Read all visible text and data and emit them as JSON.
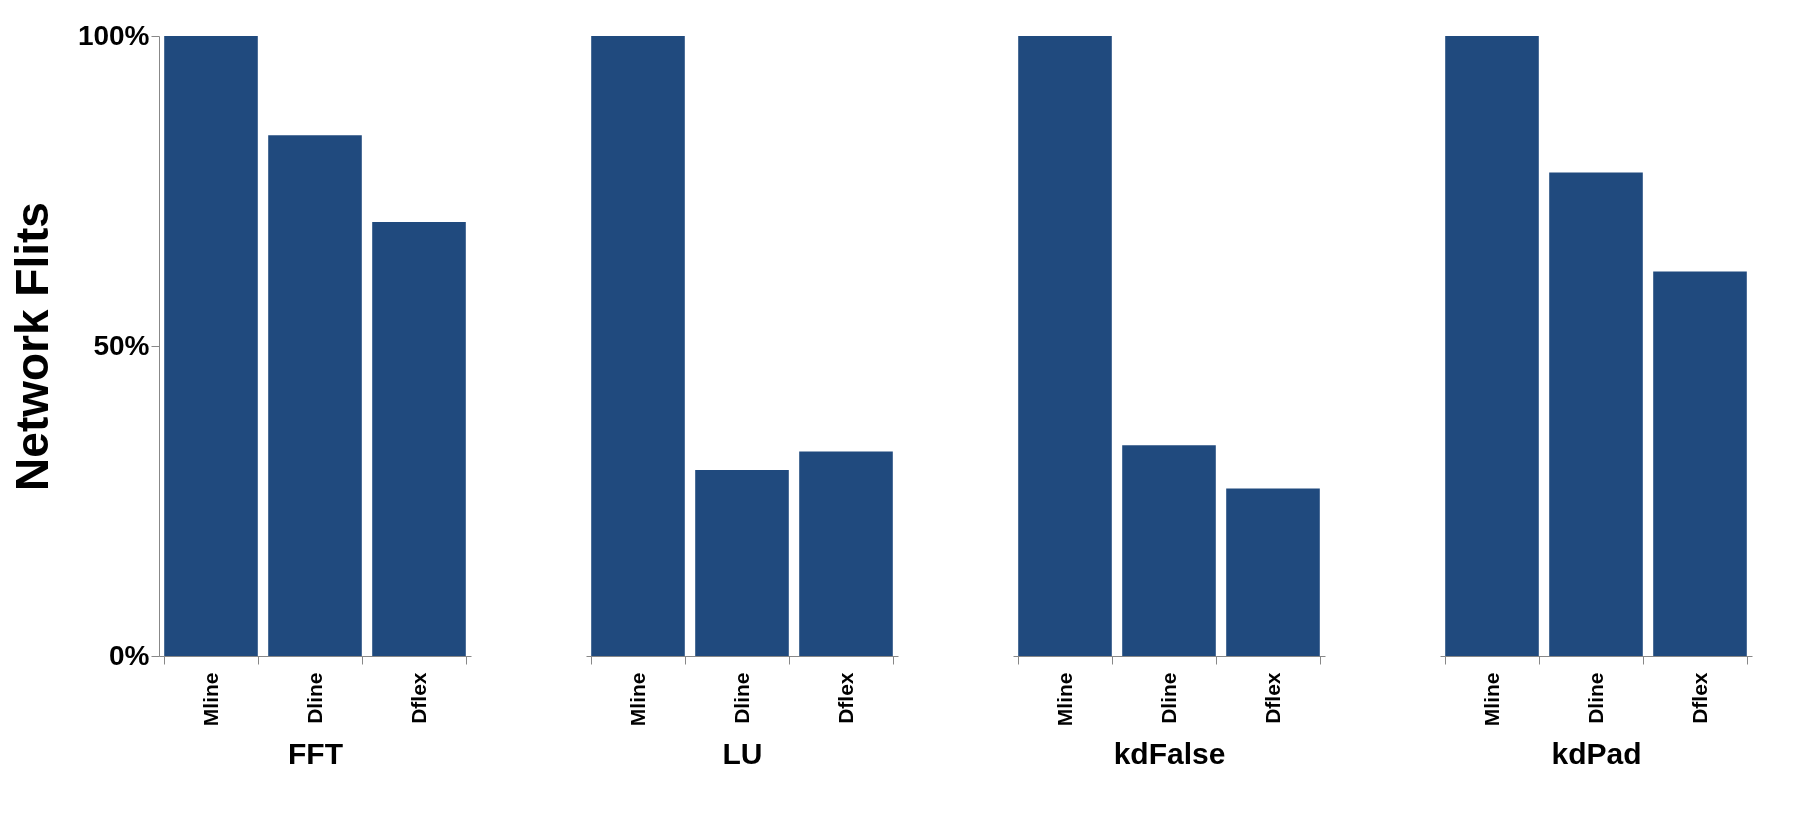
{
  "chart_data": [
    {
      "type": "bar",
      "xlabel": "FFT",
      "ylabel": "Network Flits",
      "categories": [
        "Mline",
        "Dline",
        "Dflex"
      ],
      "values": [
        100,
        84,
        70
      ],
      "color": "#204a7e",
      "ylim": [
        0,
        100
      ],
      "yticks": [
        {
          "value": 0,
          "label": "0%"
        },
        {
          "value": 50,
          "label": "50%"
        },
        {
          "value": 100,
          "label": "100%"
        }
      ]
    },
    {
      "type": "bar",
      "xlabel": "LU",
      "categories": [
        "Mline",
        "Dline",
        "Dflex"
      ],
      "values": [
        100,
        30,
        33
      ],
      "color": "#204a7e",
      "ylim": [
        0,
        100
      ],
      "tick_labels": "x"
    },
    {
      "type": "bar",
      "xlabel": "kdFalse",
      "categories": [
        "Mline",
        "Dline",
        "Dflex"
      ],
      "values": [
        100,
        34,
        27
      ],
      "color": "#204a7e",
      "ylim": [
        0,
        100
      ],
      "tick_labels": "x"
    },
    {
      "type": "bar",
      "xlabel": "kdPad",
      "categories": [
        "Mline",
        "Dline",
        "Dflex"
      ],
      "values": [
        100,
        78,
        62
      ],
      "color": "#204a7e",
      "ylim": [
        0,
        100
      ],
      "tick_labels": "x"
    }
  ]
}
